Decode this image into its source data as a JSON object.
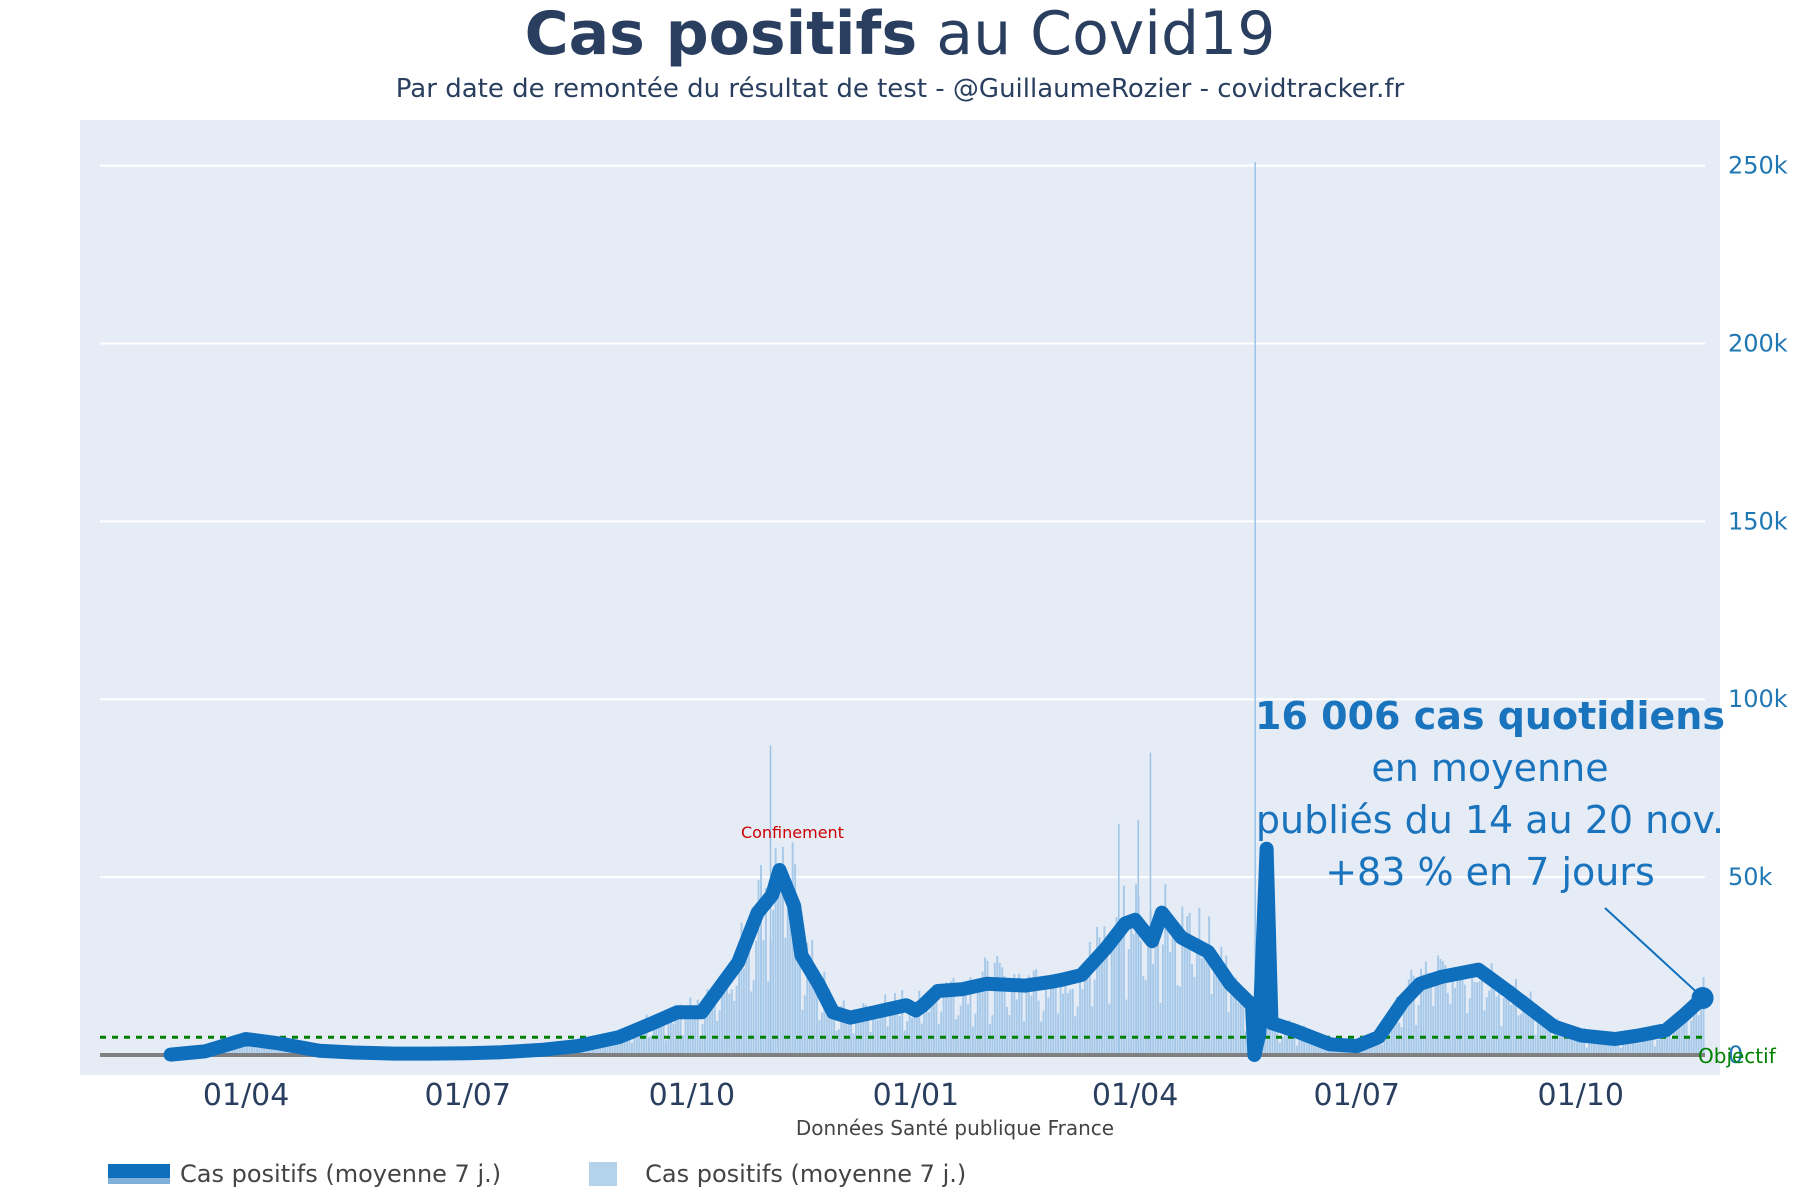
{
  "header": {
    "title_bold": "Cas positifs",
    "title_rest": " au Covid19",
    "subtitle": "Par date de remontée du résultat de test - @GuillaumeRozier - covidtracker.fr"
  },
  "annotation": {
    "line1": "16 006 cas quotidiens",
    "line2": "en moyenne",
    "line3": "publiés du 14 au 20 nov.",
    "line4": "+83 % en 7 jours"
  },
  "event_label": "Confinement",
  "objectif_label": "Objectif",
  "source_label": "Données Santé publique France",
  "legend": {
    "line_label": "Cas positifs (moyenne 7 j.)",
    "bar_label": "Cas positifs (moyenne 7 j.)"
  },
  "colors": {
    "plot_bg": "#e5ecf6",
    "line": "#0f6fbd",
    "bars": "#9cc3e6",
    "axis_text": "#1f77b4",
    "objectif": "#008000",
    "event": "#cc0000"
  },
  "chart_data": {
    "type": "line",
    "x_axis": {
      "type": "date",
      "range": [
        "2020-02-01",
        "2021-11-21"
      ],
      "ticks": [
        "01/04",
        "01/07",
        "01/10",
        "01/01",
        "01/04",
        "01/07",
        "01/10"
      ]
    },
    "y_axis": {
      "range": [
        0,
        260000
      ],
      "side": "right",
      "ticks": [
        "0",
        "50k",
        "100k",
        "150k",
        "200k",
        "250k"
      ]
    },
    "grid": true,
    "legend_position": "bottom-left",
    "objectif_value": 5000,
    "event": {
      "label": "Confinement",
      "date": "2020-10-30"
    },
    "series": [
      {
        "name": "Cas positifs (moyenne 7 j.)",
        "kind": "line",
        "points": [
          [
            "2020-03-01",
            100
          ],
          [
            "2020-03-15",
            1000
          ],
          [
            "2020-04-01",
            4500
          ],
          [
            "2020-04-15",
            3200
          ],
          [
            "2020-05-01",
            1200
          ],
          [
            "2020-05-15",
            700
          ],
          [
            "2020-06-01",
            400
          ],
          [
            "2020-06-15",
            400
          ],
          [
            "2020-07-01",
            500
          ],
          [
            "2020-07-15",
            800
          ],
          [
            "2020-08-01",
            1500
          ],
          [
            "2020-08-15",
            2500
          ],
          [
            "2020-09-01",
            5000
          ],
          [
            "2020-09-15",
            9000
          ],
          [
            "2020-09-25",
            12000
          ],
          [
            "2020-10-05",
            12000
          ],
          [
            "2020-10-20",
            26000
          ],
          [
            "2020-10-28",
            40000
          ],
          [
            "2020-11-03",
            45000
          ],
          [
            "2020-11-06",
            52000
          ],
          [
            "2020-11-12",
            42000
          ],
          [
            "2020-11-15",
            28000
          ],
          [
            "2020-11-22",
            20000
          ],
          [
            "2020-11-28",
            12000
          ],
          [
            "2020-12-05",
            10500
          ],
          [
            "2020-12-15",
            12000
          ],
          [
            "2020-12-28",
            14000
          ],
          [
            "2021-01-01",
            12500
          ],
          [
            "2021-01-04",
            14000
          ],
          [
            "2021-01-10",
            18000
          ],
          [
            "2021-01-20",
            18500
          ],
          [
            "2021-01-30",
            20000
          ],
          [
            "2021-02-15",
            19500
          ],
          [
            "2021-02-25",
            20500
          ],
          [
            "2021-03-01",
            21000
          ],
          [
            "2021-03-10",
            22500
          ],
          [
            "2021-03-20",
            30000
          ],
          [
            "2021-03-28",
            37000
          ],
          [
            "2021-04-01",
            38000
          ],
          [
            "2021-04-08",
            32000
          ],
          [
            "2021-04-12",
            40000
          ],
          [
            "2021-04-20",
            33000
          ],
          [
            "2021-05-01",
            29000
          ],
          [
            "2021-05-10",
            20000
          ],
          [
            "2021-05-19",
            14000
          ],
          [
            "2021-05-20",
            0
          ],
          [
            "2021-05-22",
            6000
          ],
          [
            "2021-05-25",
            58000
          ],
          [
            "2021-05-27",
            9000
          ],
          [
            "2021-06-05",
            7000
          ],
          [
            "2021-06-20",
            3000
          ],
          [
            "2021-07-01",
            2500
          ],
          [
            "2021-07-10",
            5000
          ],
          [
            "2021-07-20",
            15000
          ],
          [
            "2021-07-27",
            20000
          ],
          [
            "2021-08-05",
            22000
          ],
          [
            "2021-08-20",
            24000
          ],
          [
            "2021-09-01",
            18000
          ],
          [
            "2021-09-20",
            8000
          ],
          [
            "2021-10-01",
            5500
          ],
          [
            "2021-10-15",
            4500
          ],
          [
            "2021-10-25",
            5500
          ],
          [
            "2021-11-05",
            7000
          ],
          [
            "2021-11-12",
            11000
          ],
          [
            "2021-11-20",
            16006
          ]
        ]
      },
      {
        "name": "Cas positifs (moyenne 7 j.)",
        "kind": "bar",
        "spikes": [
          [
            "2020-11-02",
            87000
          ],
          [
            "2021-03-25",
            65000
          ],
          [
            "2021-04-07",
            85000
          ],
          [
            "2021-04-02",
            66000
          ],
          [
            "2021-05-20",
            251000
          ]
        ]
      }
    ]
  }
}
